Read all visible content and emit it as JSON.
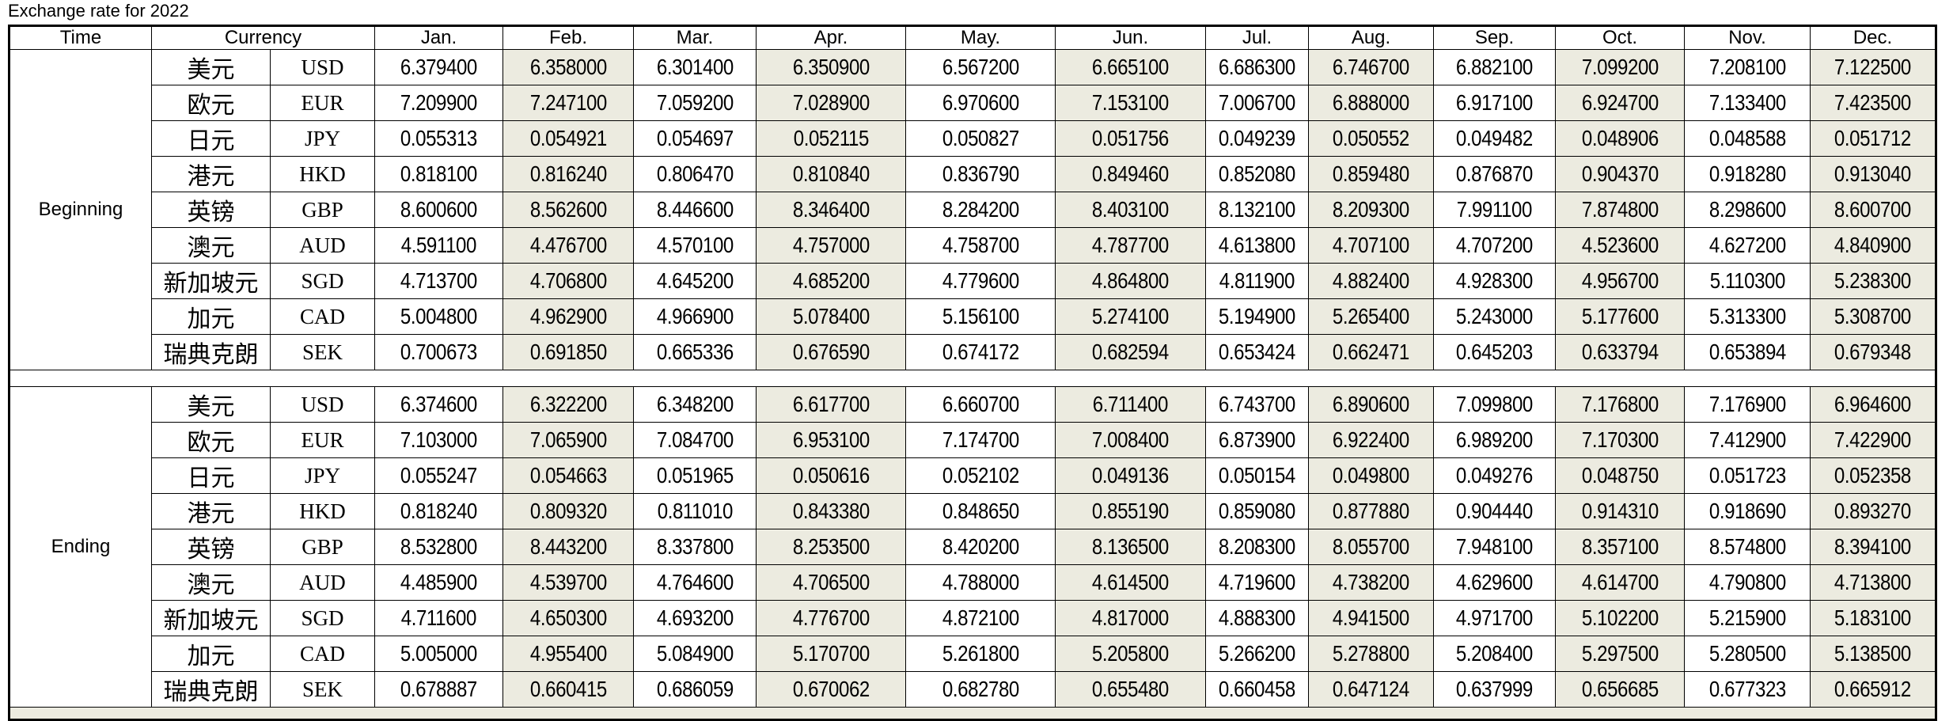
{
  "title": "Exchange rate for 2022",
  "table": {
    "headers": {
      "time": "Time",
      "currency": "Currency"
    },
    "months": [
      "Jan.",
      "Feb.",
      "Mar.",
      "Apr.",
      "May.",
      "Jun.",
      "Jul.",
      "Aug.",
      "Sep.",
      "Oct.",
      "Nov.",
      "Dec."
    ],
    "shaded_month_indices": [
      1,
      3,
      5,
      7,
      9,
      11
    ],
    "colors": {
      "shade": "#ecebe0",
      "grid": "#000000"
    },
    "sections": [
      {
        "label": "Beginning",
        "rows": [
          {
            "name_cn": "美元",
            "code": "USD",
            "values": [
              "6.379400",
              "6.358000",
              "6.301400",
              "6.350900",
              "6.567200",
              "6.665100",
              "6.686300",
              "6.746700",
              "6.882100",
              "7.099200",
              "7.208100",
              "7.122500"
            ]
          },
          {
            "name_cn": "欧元",
            "code": "EUR",
            "values": [
              "7.209900",
              "7.247100",
              "7.059200",
              "7.028900",
              "6.970600",
              "7.153100",
              "7.006700",
              "6.888000",
              "6.917100",
              "6.924700",
              "7.133400",
              "7.423500"
            ]
          },
          {
            "name_cn": "日元",
            "code": "JPY",
            "values": [
              "0.055313",
              "0.054921",
              "0.054697",
              "0.052115",
              "0.050827",
              "0.051756",
              "0.049239",
              "0.050552",
              "0.049482",
              "0.048906",
              "0.048588",
              "0.051712"
            ]
          },
          {
            "name_cn": "港元",
            "code": "HKD",
            "values": [
              "0.818100",
              "0.816240",
              "0.806470",
              "0.810840",
              "0.836790",
              "0.849460",
              "0.852080",
              "0.859480",
              "0.876870",
              "0.904370",
              "0.918280",
              "0.913040"
            ]
          },
          {
            "name_cn": "英镑",
            "code": "GBP",
            "values": [
              "8.600600",
              "8.562600",
              "8.446600",
              "8.346400",
              "8.284200",
              "8.403100",
              "8.132100",
              "8.209300",
              "7.991100",
              "7.874800",
              "8.298600",
              "8.600700"
            ]
          },
          {
            "name_cn": "澳元",
            "code": "AUD",
            "values": [
              "4.591100",
              "4.476700",
              "4.570100",
              "4.757000",
              "4.758700",
              "4.787700",
              "4.613800",
              "4.707100",
              "4.707200",
              "4.523600",
              "4.627200",
              "4.840900"
            ]
          },
          {
            "name_cn": "新加坡元",
            "code": "SGD",
            "values": [
              "4.713700",
              "4.706800",
              "4.645200",
              "4.685200",
              "4.779600",
              "4.864800",
              "4.811900",
              "4.882400",
              "4.928300",
              "4.956700",
              "5.110300",
              "5.238300"
            ]
          },
          {
            "name_cn": "加元",
            "code": "CAD",
            "values": [
              "5.004800",
              "4.962900",
              "4.966900",
              "5.078400",
              "5.156100",
              "5.274100",
              "5.194900",
              "5.265400",
              "5.243000",
              "5.177600",
              "5.313300",
              "5.308700"
            ]
          },
          {
            "name_cn": "瑞典克朗",
            "code": "SEK",
            "values": [
              "0.700673",
              "0.691850",
              "0.665336",
              "0.676590",
              "0.674172",
              "0.682594",
              "0.653424",
              "0.662471",
              "0.645203",
              "0.633794",
              "0.653894",
              "0.679348"
            ]
          }
        ]
      },
      {
        "label": "Ending",
        "rows": [
          {
            "name_cn": "美元",
            "code": "USD",
            "values": [
              "6.374600",
              "6.322200",
              "6.348200",
              "6.617700",
              "6.660700",
              "6.711400",
              "6.743700",
              "6.890600",
              "7.099800",
              "7.176800",
              "7.176900",
              "6.964600"
            ]
          },
          {
            "name_cn": "欧元",
            "code": "EUR",
            "values": [
              "7.103000",
              "7.065900",
              "7.084700",
              "6.953100",
              "7.174700",
              "7.008400",
              "6.873900",
              "6.922400",
              "6.989200",
              "7.170300",
              "7.412900",
              "7.422900"
            ]
          },
          {
            "name_cn": "日元",
            "code": "JPY",
            "values": [
              "0.055247",
              "0.054663",
              "0.051965",
              "0.050616",
              "0.052102",
              "0.049136",
              "0.050154",
              "0.049800",
              "0.049276",
              "0.048750",
              "0.051723",
              "0.052358"
            ]
          },
          {
            "name_cn": "港元",
            "code": "HKD",
            "values": [
              "0.818240",
              "0.809320",
              "0.811010",
              "0.843380",
              "0.848650",
              "0.855190",
              "0.859080",
              "0.877880",
              "0.904440",
              "0.914310",
              "0.918690",
              "0.893270"
            ]
          },
          {
            "name_cn": "英镑",
            "code": "GBP",
            "values": [
              "8.532800",
              "8.443200",
              "8.337800",
              "8.253500",
              "8.420200",
              "8.136500",
              "8.208300",
              "8.055700",
              "7.948100",
              "8.357100",
              "8.574800",
              "8.394100"
            ]
          },
          {
            "name_cn": "澳元",
            "code": "AUD",
            "values": [
              "4.485900",
              "4.539700",
              "4.764600",
              "4.706500",
              "4.788000",
              "4.614500",
              "4.719600",
              "4.738200",
              "4.629600",
              "4.614700",
              "4.790800",
              "4.713800"
            ]
          },
          {
            "name_cn": "新加坡元",
            "code": "SGD",
            "values": [
              "4.711600",
              "4.650300",
              "4.693200",
              "4.776700",
              "4.872100",
              "4.817000",
              "4.888300",
              "4.941500",
              "4.971700",
              "5.102200",
              "5.215900",
              "5.183100"
            ]
          },
          {
            "name_cn": "加元",
            "code": "CAD",
            "values": [
              "5.005000",
              "4.955400",
              "5.084900",
              "5.170700",
              "5.261800",
              "5.205800",
              "5.266200",
              "5.278800",
              "5.208400",
              "5.297500",
              "5.280500",
              "5.138500"
            ]
          },
          {
            "name_cn": "瑞典克朗",
            "code": "SEK",
            "values": [
              "0.678887",
              "0.660415",
              "0.686059",
              "0.670062",
              "0.682780",
              "0.655480",
              "0.660458",
              "0.647124",
              "0.637999",
              "0.656685",
              "0.677323",
              "0.665912"
            ]
          }
        ]
      }
    ]
  }
}
